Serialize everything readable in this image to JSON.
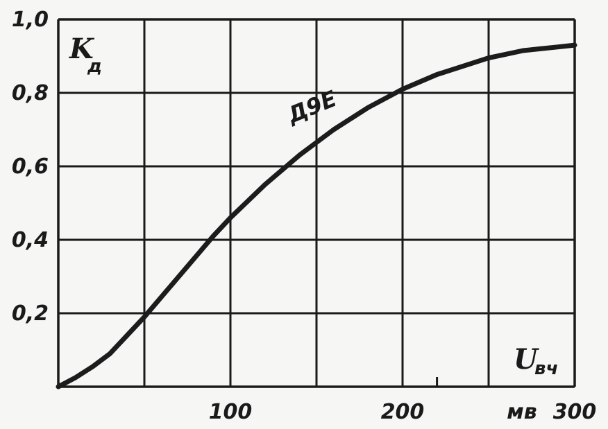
{
  "chart_data": {
    "type": "line",
    "title": "",
    "ylabel_main": "K",
    "ylabel_sub": "д",
    "xlabel_main": "U",
    "xlabel_sub": "вч",
    "x_unit": "мв",
    "xlim": [
      0,
      300
    ],
    "ylim": [
      0,
      1.0
    ],
    "grid": true,
    "x_ticks": [
      "100",
      "200",
      "300"
    ],
    "y_ticks": [
      "0,2",
      "0,4",
      "0,6",
      "0,8",
      "1,0"
    ],
    "series": [
      {
        "name": "Д9Е",
        "x": [
          0,
          10,
          20,
          30,
          40,
          50,
          60,
          70,
          80,
          90,
          100,
          110,
          120,
          130,
          140,
          150,
          160,
          170,
          180,
          190,
          200,
          210,
          220,
          230,
          240,
          250,
          260,
          270,
          280,
          290,
          300
        ],
        "y": [
          0,
          0.025,
          0.055,
          0.09,
          0.14,
          0.19,
          0.245,
          0.3,
          0.355,
          0.41,
          0.46,
          0.505,
          0.55,
          0.59,
          0.63,
          0.665,
          0.7,
          0.73,
          0.76,
          0.785,
          0.81,
          0.83,
          0.85,
          0.865,
          0.88,
          0.895,
          0.905,
          0.915,
          0.92,
          0.925,
          0.93
        ]
      }
    ]
  }
}
